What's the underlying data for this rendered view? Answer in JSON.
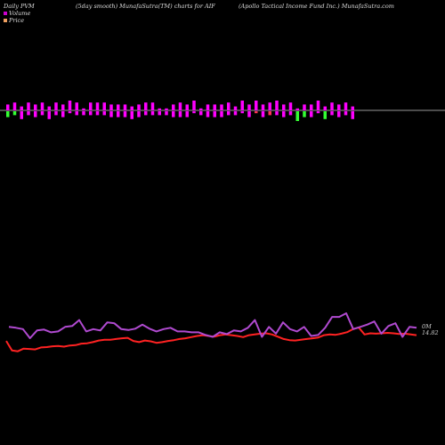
{
  "header": {
    "left": "Daily PVM",
    "mid": "(5day smooth) MunafaSutra(TM) charts for AIF",
    "right": "(Apollo  Tactical Income   Fund Inc.) MunafaSutra.com"
  },
  "legend": [
    {
      "label": "Volume",
      "color": "#cc00cc"
    },
    {
      "label": "Price",
      "color": "#f0a060"
    }
  ],
  "colors": {
    "up": "#ff00ff",
    "down": "#33ff33",
    "red_bar": "#ff3355",
    "price": "#ff2222",
    "volume": "#b04ad0",
    "baseline": "#cccccc"
  },
  "chart_data": {
    "type": "line",
    "series": [
      {
        "name": "Price",
        "end_label": "14.82",
        "values": [
          14.55,
          14.3,
          14.28,
          14.35,
          14.34,
          14.33,
          14.38,
          14.39,
          14.41,
          14.42,
          14.4,
          14.43,
          14.44,
          14.48,
          14.49,
          14.52,
          14.56,
          14.58,
          14.58,
          14.6,
          14.62,
          14.63,
          14.55,
          14.52,
          14.56,
          14.54,
          14.5,
          14.52,
          14.55,
          14.57,
          14.6,
          14.62,
          14.65,
          14.68,
          14.7,
          14.68,
          14.66,
          14.7,
          14.72,
          14.7,
          14.68,
          14.65,
          14.7,
          14.72,
          14.74,
          14.75,
          14.72,
          14.66,
          14.6,
          14.57,
          14.56,
          14.58,
          14.6,
          14.62,
          14.64,
          14.7,
          14.72,
          14.71,
          14.74,
          14.78,
          14.86,
          14.9,
          14.72,
          14.75,
          14.74,
          14.75,
          14.76,
          14.75,
          14.73,
          14.74,
          14.72,
          14.7
        ]
      },
      {
        "name": "Volume",
        "end_label": "0M",
        "values": [
          1.0,
          0.98,
          0.95,
          0.75,
          0.92,
          0.94,
          0.88,
          0.9,
          1.0,
          1.02,
          1.15,
          0.9,
          0.95,
          0.92,
          1.1,
          1.08,
          0.95,
          0.93,
          0.96,
          1.05,
          0.96,
          0.9,
          0.95,
          0.98,
          0.9,
          0.9,
          0.88,
          0.88,
          0.82,
          0.78,
          0.88,
          0.84,
          0.92,
          0.9,
          0.98,
          1.15,
          0.78,
          1.0,
          0.85,
          1.1,
          0.95,
          0.9,
          1.0,
          0.8,
          0.82,
          0.98,
          1.22,
          1.22,
          1.3,
          0.95,
          1.0,
          1.05,
          1.12,
          0.85,
          1.02,
          1.08,
          0.78,
          1.0,
          0.98
        ]
      }
    ],
    "volume_bars": {
      "up": [
        3,
        4,
        2,
        4,
        3,
        4,
        2,
        4,
        3,
        5,
        4,
        1,
        4,
        4,
        4,
        3,
        3,
        3,
        2,
        3,
        4,
        4,
        1,
        1,
        3,
        4,
        3,
        5,
        1,
        3,
        3,
        3,
        4,
        2,
        5,
        3,
        5,
        3,
        4,
        5,
        3,
        4,
        1,
        3,
        3,
        5,
        2,
        4,
        3,
        4,
        2
      ],
      "down": [
        3,
        2,
        4,
        2,
        3,
        2,
        4,
        2,
        3,
        1,
        2,
        2,
        2,
        2,
        2,
        3,
        3,
        3,
        4,
        3,
        2,
        2,
        2,
        2,
        3,
        3,
        3,
        1,
        2,
        3,
        3,
        3,
        2,
        2,
        1,
        3,
        1,
        3,
        2,
        2,
        3,
        2,
        5,
        3,
        3,
        1,
        4,
        2,
        3,
        2,
        4
      ],
      "color": [
        "g",
        "g",
        "m",
        "m",
        "m",
        "m",
        "m",
        "m",
        "m",
        "m",
        "m",
        "m",
        "m",
        "m",
        "m",
        "m",
        "m",
        "m",
        "m",
        "m",
        "m",
        "m",
        "m",
        "m",
        "m",
        "m",
        "m",
        "m",
        "m",
        "m",
        "m",
        "m",
        "m",
        "m",
        "m",
        "m",
        "r",
        "m",
        "r",
        "m",
        "m",
        "m",
        "g",
        "g",
        "m",
        "m",
        "g",
        "m",
        "m",
        "m",
        "m"
      ]
    }
  }
}
